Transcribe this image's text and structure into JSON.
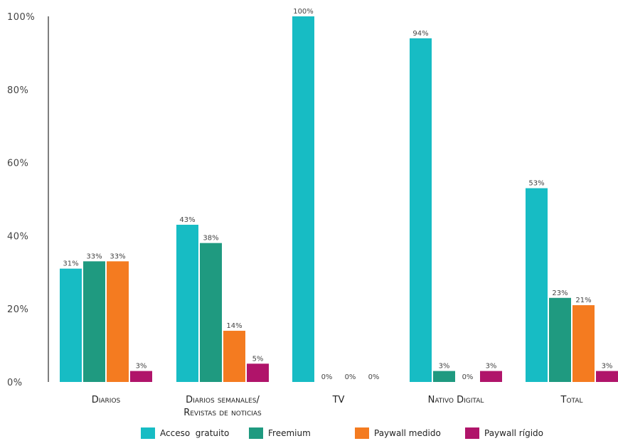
{
  "chart_data": {
    "type": "bar",
    "categories": [
      "Diarios",
      "Diarios semanales/\nRevistas de noticias",
      "TV",
      "Nativo Digital",
      "Total"
    ],
    "series": [
      {
        "name": "Acceso  gratuito",
        "color": "#17bcc4",
        "values": [
          31,
          43,
          100,
          94,
          53
        ]
      },
      {
        "name": "Freemium",
        "color": "#1f9a80",
        "values": [
          33,
          38,
          0,
          3,
          23
        ]
      },
      {
        "name": "Paywall medido",
        "color": "#f47b20",
        "values": [
          33,
          14,
          0,
          0,
          21
        ]
      },
      {
        "name": "Paywall rígido",
        "color": "#b0146a",
        "values": [
          3,
          5,
          0,
          3,
          3
        ]
      }
    ],
    "ylim": [
      0,
      100
    ],
    "yticks": [
      "0%",
      "20%",
      "40%",
      "60%",
      "80%",
      "100%"
    ],
    "data_label_suffix": "%",
    "legend_position": "bottom",
    "grid": false
  }
}
